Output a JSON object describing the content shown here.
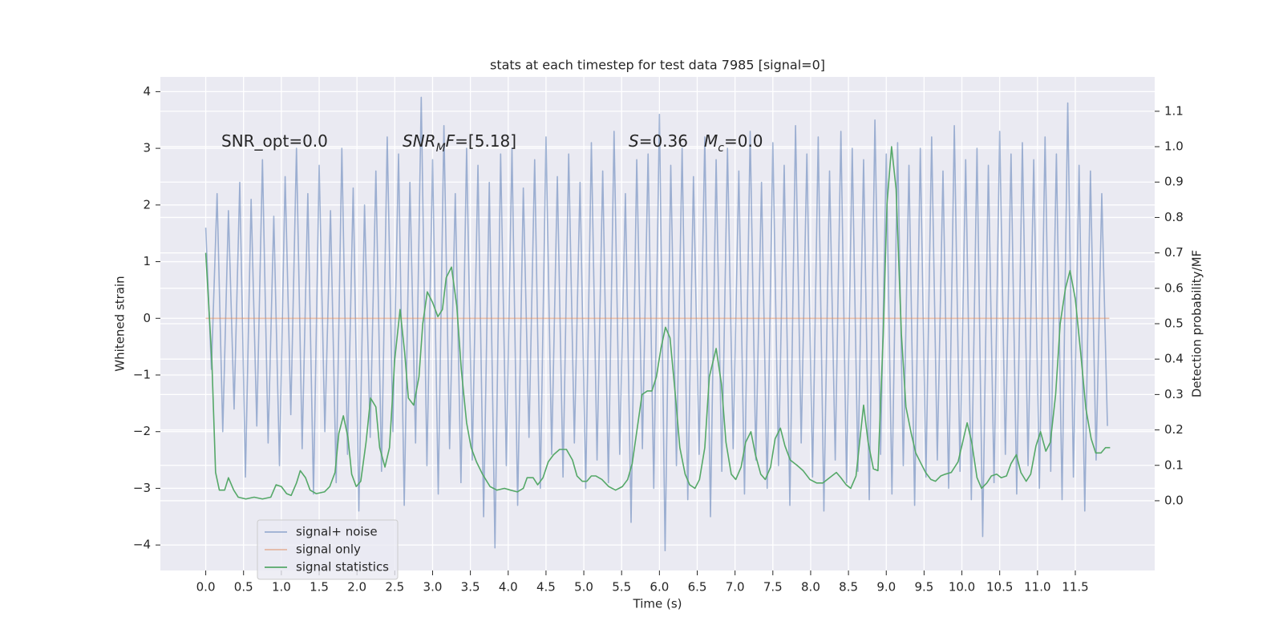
{
  "chart_data": {
    "type": "line",
    "title": "stats at each timestep for test data 7985 [signal=0]",
    "x_label": "Time (s)",
    "y_label": "Whitened strain",
    "y2_label": "Detection probability/MF",
    "xlim": [
      -0.6,
      12.55
    ],
    "ylim": [
      -4.45,
      4.26
    ],
    "y2lim": [
      -0.197,
      1.197
    ],
    "xticks": [
      {
        "value": 0,
        "label": "0.0"
      },
      0.5,
      {
        "value": 1,
        "label": "1.0"
      },
      1.5,
      {
        "value": 2,
        "label": "2.0"
      },
      2.5,
      {
        "value": 3,
        "label": "3.0"
      },
      3.5,
      {
        "value": 4,
        "label": "4.0"
      },
      4.5,
      {
        "value": 5,
        "label": "5.0"
      },
      5.5,
      {
        "value": 6,
        "label": "6.0"
      },
      6.5,
      {
        "value": 7,
        "label": "7.0"
      },
      7.5,
      {
        "value": 8,
        "label": "8.0"
      },
      8.5,
      {
        "value": 9,
        "label": "9.0"
      },
      9.5,
      {
        "value": 10,
        "label": "10.0"
      },
      10.5,
      {
        "value": 11,
        "label": "11.0"
      },
      11.5
    ],
    "yticks": [
      {
        "value": -4,
        "label": "−4"
      },
      {
        "value": -3,
        "label": "−3"
      },
      {
        "value": -2,
        "label": "−2"
      },
      {
        "value": -1,
        "label": "−1"
      },
      0,
      1,
      2,
      3,
      4
    ],
    "y2ticks": [
      {
        "value": 0,
        "label": "0.0"
      },
      0.1,
      0.2,
      0.3,
      0.4,
      0.5,
      0.6,
      0.7,
      0.8,
      0.9,
      {
        "value": 1,
        "label": "1.0"
      },
      1.1
    ],
    "grid": true,
    "legend": "lower left",
    "annotations": [
      [
        {
          "text": "SNR_opt=0.0"
        }
      ],
      [
        {
          "text": "SNR",
          "style": "italic"
        },
        {
          "text": "M",
          "style": "italic-sub"
        },
        {
          "text": "F",
          "style": "italic"
        },
        {
          "text": "=[5.18]"
        }
      ],
      [
        {
          "text": "S",
          "style": "italic"
        },
        {
          "text": "=0.36"
        }
      ],
      [
        {
          "text": "M",
          "style": "italic"
        },
        {
          "text": "c",
          "style": "italic-sub"
        },
        {
          "text": "=0.0"
        }
      ]
    ],
    "series": [
      {
        "name": "signal+ noise",
        "color": "#4c72b0",
        "opacity": 0.5,
        "axis": "y",
        "x": [
          0,
          0.075,
          0.15,
          0.225,
          0.3,
          0.375,
          0.45,
          0.525,
          0.6,
          0.675,
          0.75,
          0.825,
          0.9,
          0.975,
          1.05,
          1.125,
          1.2,
          1.275,
          1.35,
          1.425,
          1.5,
          1.575,
          1.65,
          1.725,
          1.8,
          1.875,
          1.95,
          2.025,
          2.1,
          2.175,
          2.25,
          2.325,
          2.4,
          2.475,
          2.55,
          2.625,
          2.7,
          2.775,
          2.85,
          2.925,
          3,
          3.075,
          3.15,
          3.225,
          3.3,
          3.375,
          3.45,
          3.525,
          3.6,
          3.675,
          3.75,
          3.825,
          3.9,
          3.975,
          4.05,
          4.125,
          4.2,
          4.275,
          4.35,
          4.425,
          4.5,
          4.575,
          4.65,
          4.725,
          4.8,
          4.875,
          4.95,
          5.025,
          5.1,
          5.175,
          5.25,
          5.325,
          5.4,
          5.475,
          5.55,
          5.625,
          5.7,
          5.775,
          5.85,
          5.925,
          6,
          6.075,
          6.15,
          6.225,
          6.3,
          6.375,
          6.45,
          6.525,
          6.6,
          6.675,
          6.75,
          6.825,
          6.9,
          6.975,
          7.05,
          7.125,
          7.2,
          7.275,
          7.35,
          7.425,
          7.5,
          7.575,
          7.65,
          7.725,
          7.8,
          7.875,
          7.95,
          8.025,
          8.1,
          8.175,
          8.25,
          8.325,
          8.4,
          8.475,
          8.55,
          8.625,
          8.7,
          8.775,
          8.85,
          8.925,
          9,
          9.075,
          9.15,
          9.225,
          9.3,
          9.375,
          9.45,
          9.525,
          9.6,
          9.675,
          9.75,
          9.825,
          9.9,
          9.975,
          10.05,
          10.125,
          10.2,
          10.275,
          10.35,
          10.425,
          10.5,
          10.575,
          10.65,
          10.725,
          10.8,
          10.875,
          10.95,
          11.025,
          11.1,
          11.175,
          11.25,
          11.325,
          11.4,
          11.475,
          11.55,
          11.625,
          11.7,
          11.775,
          11.85,
          11.925
        ],
        "values": [
          1.6,
          -0.9,
          2.2,
          -2.0,
          1.9,
          -1.6,
          2.4,
          -2.8,
          2.1,
          -1.9,
          2.8,
          -2.2,
          1.8,
          -2.6,
          2.5,
          -1.7,
          3.0,
          -2.3,
          2.2,
          -3.1,
          2.7,
          -2.0,
          1.9,
          -2.9,
          3.0,
          -2.4,
          2.3,
          -3.4,
          2.0,
          -2.1,
          2.6,
          -2.7,
          3.2,
          -2.0,
          2.9,
          -3.3,
          2.4,
          -2.2,
          3.9,
          -2.6,
          2.8,
          -3.1,
          3.4,
          -2.3,
          2.2,
          -2.9,
          3.0,
          -2.5,
          2.7,
          -3.5,
          2.4,
          -4.05,
          2.9,
          -2.6,
          3.0,
          -3.3,
          2.3,
          -2.1,
          2.8,
          -3.0,
          3.2,
          -2.4,
          2.5,
          -2.8,
          2.9,
          -2.2,
          2.4,
          -3.0,
          3.1,
          -2.5,
          2.6,
          -2.9,
          3.3,
          -2.4,
          2.2,
          -3.6,
          2.8,
          -2.3,
          2.9,
          -3.0,
          3.6,
          -4.1,
          2.7,
          -2.6,
          3.0,
          -3.2,
          2.5,
          -2.4,
          3.2,
          -3.5,
          2.8,
          -2.7,
          3.0,
          -2.3,
          2.6,
          -3.1,
          3.3,
          -2.5,
          2.4,
          -3.0,
          3.1,
          -2.6,
          2.7,
          -3.3,
          3.4,
          -2.2,
          2.9,
          -2.8,
          3.2,
          -3.4,
          2.6,
          -2.5,
          3.3,
          -2.9,
          3.0,
          -2.7,
          2.8,
          -3.2,
          3.5,
          -2.4,
          2.9,
          -3.1,
          3.1,
          -2.6,
          2.7,
          -3.3,
          3.0,
          -2.8,
          3.2,
          -2.5,
          2.6,
          -3.0,
          3.4,
          -2.7,
          2.8,
          -3.2,
          3.0,
          -3.85,
          2.7,
          -2.9,
          3.3,
          -2.4,
          2.9,
          -3.1,
          3.1,
          -2.6,
          2.8,
          -3.0,
          3.2,
          -2.7,
          2.9,
          -3.2,
          3.8,
          -2.8,
          2.7,
          -3.4,
          2.6,
          -2.5,
          2.2,
          -1.9
        ]
      },
      {
        "name": "signal only",
        "color": "#dd8452",
        "opacity": 0.5,
        "axis": "y",
        "x": [
          0,
          11.95
        ],
        "values": [
          0,
          0
        ]
      },
      {
        "name": "signal statistics",
        "color": "#55a868",
        "opacity": 1,
        "axis": "y2",
        "x": [
          0,
          0.08,
          0.13,
          0.18,
          0.25,
          0.3,
          0.37,
          0.43,
          0.53,
          0.64,
          0.75,
          0.86,
          0.93,
          1.0,
          1.07,
          1.13,
          1.2,
          1.25,
          1.32,
          1.38,
          1.46,
          1.57,
          1.64,
          1.71,
          1.76,
          1.82,
          1.88,
          1.93,
          1.99,
          2.05,
          2.12,
          2.18,
          2.25,
          2.3,
          2.37,
          2.43,
          2.5,
          2.57,
          2.63,
          2.68,
          2.75,
          2.82,
          2.87,
          2.93,
          3.0,
          3.07,
          3.13,
          3.18,
          3.25,
          3.32,
          3.38,
          3.45,
          3.51,
          3.58,
          3.66,
          3.76,
          3.85,
          3.95,
          4.03,
          4.12,
          4.2,
          4.25,
          4.33,
          4.39,
          4.46,
          4.53,
          4.6,
          4.68,
          4.77,
          4.85,
          4.91,
          4.98,
          5.04,
          5.1,
          5.16,
          5.24,
          5.33,
          5.42,
          5.51,
          5.58,
          5.64,
          5.71,
          5.77,
          5.84,
          5.9,
          5.96,
          6.02,
          6.08,
          6.14,
          6.21,
          6.27,
          6.34,
          6.4,
          6.47,
          6.53,
          6.6,
          6.66,
          6.75,
          6.82,
          6.88,
          6.95,
          7.01,
          7.08,
          7.14,
          7.21,
          7.27,
          7.34,
          7.4,
          7.47,
          7.53,
          7.6,
          7.66,
          7.73,
          7.82,
          7.9,
          7.99,
          8.08,
          8.16,
          8.25,
          8.34,
          8.4,
          8.47,
          8.53,
          8.6,
          8.64,
          8.7,
          8.76,
          8.83,
          8.89,
          8.96,
          9.01,
          9.07,
          9.13,
          9.2,
          9.26,
          9.33,
          9.39,
          9.46,
          9.52,
          9.59,
          9.65,
          9.72,
          9.78,
          9.86,
          9.95,
          10.01,
          10.07,
          10.13,
          10.2,
          10.26,
          10.33,
          10.39,
          10.46,
          10.52,
          10.59,
          10.65,
          10.72,
          10.78,
          10.85,
          10.91,
          10.98,
          11.04,
          11.11,
          11.17,
          11.24,
          11.3,
          11.37,
          11.43,
          11.5,
          11.57,
          11.64,
          11.71,
          11.77,
          11.84,
          11.9,
          11.96
        ],
        "values": [
          0.7,
          0.4,
          0.08,
          0.03,
          0.03,
          0.065,
          0.03,
          0.01,
          0.005,
          0.01,
          0.005,
          0.01,
          0.045,
          0.04,
          0.02,
          0.015,
          0.05,
          0.085,
          0.065,
          0.03,
          0.02,
          0.025,
          0.04,
          0.08,
          0.19,
          0.24,
          0.18,
          0.075,
          0.04,
          0.055,
          0.165,
          0.29,
          0.265,
          0.15,
          0.095,
          0.15,
          0.4,
          0.54,
          0.42,
          0.29,
          0.27,
          0.35,
          0.5,
          0.59,
          0.56,
          0.52,
          0.54,
          0.63,
          0.66,
          0.55,
          0.37,
          0.22,
          0.15,
          0.11,
          0.075,
          0.04,
          0.03,
          0.035,
          0.03,
          0.025,
          0.035,
          0.065,
          0.065,
          0.045,
          0.065,
          0.11,
          0.13,
          0.145,
          0.145,
          0.115,
          0.07,
          0.055,
          0.055,
          0.07,
          0.07,
          0.06,
          0.04,
          0.03,
          0.04,
          0.06,
          0.105,
          0.21,
          0.3,
          0.31,
          0.31,
          0.35,
          0.43,
          0.49,
          0.46,
          0.3,
          0.15,
          0.075,
          0.045,
          0.035,
          0.06,
          0.15,
          0.35,
          0.43,
          0.33,
          0.165,
          0.075,
          0.06,
          0.095,
          0.165,
          0.195,
          0.13,
          0.075,
          0.06,
          0.095,
          0.175,
          0.205,
          0.155,
          0.115,
          0.1,
          0.085,
          0.06,
          0.05,
          0.05,
          0.065,
          0.08,
          0.065,
          0.045,
          0.035,
          0.07,
          0.15,
          0.27,
          0.165,
          0.09,
          0.085,
          0.47,
          0.84,
          1.0,
          0.88,
          0.47,
          0.265,
          0.19,
          0.135,
          0.105,
          0.08,
          0.06,
          0.055,
          0.07,
          0.075,
          0.08,
          0.11,
          0.165,
          0.22,
          0.165,
          0.065,
          0.035,
          0.05,
          0.07,
          0.075,
          0.065,
          0.07,
          0.105,
          0.13,
          0.08,
          0.055,
          0.075,
          0.155,
          0.195,
          0.14,
          0.165,
          0.3,
          0.5,
          0.6,
          0.65,
          0.57,
          0.42,
          0.26,
          0.175,
          0.135,
          0.135,
          0.15,
          0.15
        ]
      }
    ]
  }
}
